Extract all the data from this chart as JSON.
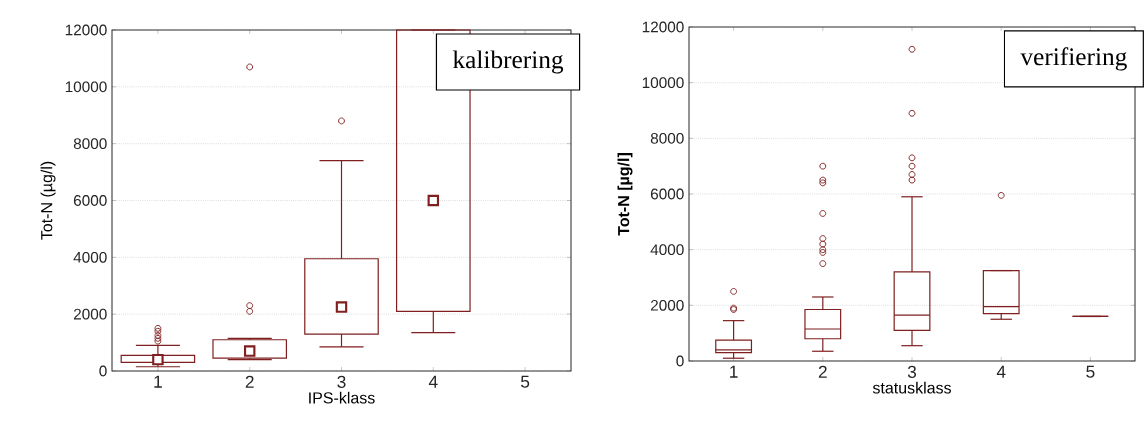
{
  "chart_data": [
    {
      "type": "box",
      "xlabel": "IPS-klass",
      "ylabel": "Tot-N (µg/l)",
      "annotations": [
        "kalibrering"
      ],
      "categories": [
        "1",
        "2",
        "3",
        "4",
        "5"
      ],
      "ylim": [
        0,
        12000
      ],
      "yticks": [
        0,
        2000,
        4000,
        6000,
        8000,
        10000,
        12000
      ],
      "grid": "y",
      "marker": "square",
      "series": [
        {
          "color": "#7f1f1f",
          "boxes": [
            {
              "low": 150,
              "q1": 300,
              "median": 400,
              "q3": 550,
              "high": 900,
              "outliers": [
                1050,
                1150,
                1250,
                1400,
                1500
              ]
            },
            {
              "low": 400,
              "q1": 450,
              "median": 700,
              "q3": 1100,
              "high": 1150,
              "outliers": [
                2100,
                2300,
                10700
              ]
            },
            {
              "low": 850,
              "q1": 1300,
              "median": 2250,
              "q3": 3950,
              "high": 7400,
              "outliers": [
                8800
              ]
            },
            {
              "low": 1350,
              "q1": 2100,
              "median": 6000,
              "q3": 12000,
              "high": 12000
            },
            null
          ]
        }
      ]
    },
    {
      "type": "box",
      "xlabel": "statusklass",
      "ylabel": "Tot-N [µg/l]",
      "annotations": [
        "verifiering"
      ],
      "categories": [
        "1",
        "2",
        "3",
        "4",
        "5"
      ],
      "ylim": [
        0,
        12000
      ],
      "yticks": [
        0,
        2000,
        4000,
        6000,
        8000,
        10000,
        12000
      ],
      "grid": "y",
      "series": [
        {
          "color": "#7f1f1f",
          "boxes": [
            {
              "low": 100,
              "q1": 300,
              "median": 400,
              "q3": 750,
              "high": 1450,
              "outliers": [
                1850,
                1900,
                2500
              ]
            },
            {
              "low": 350,
              "q1": 800,
              "median": 1150,
              "q3": 1850,
              "high": 2300,
              "outliers": [
                3500,
                3900,
                4000,
                4200,
                4400,
                5300,
                6400,
                6500,
                7000
              ]
            },
            {
              "low": 550,
              "q1": 1100,
              "median": 1650,
              "q3": 3200,
              "high": 5900,
              "outliers": [
                6500,
                6700,
                7000,
                7300,
                8900,
                11200
              ]
            },
            {
              "low": 1500,
              "q1": 1700,
              "median": 1950,
              "q3": 3250,
              "high": 3250,
              "outliers": [
                5950
              ]
            },
            {
              "low": 1600,
              "q1": 1600,
              "median": 1600,
              "q3": 1600,
              "high": 1600
            }
          ]
        }
      ]
    }
  ]
}
